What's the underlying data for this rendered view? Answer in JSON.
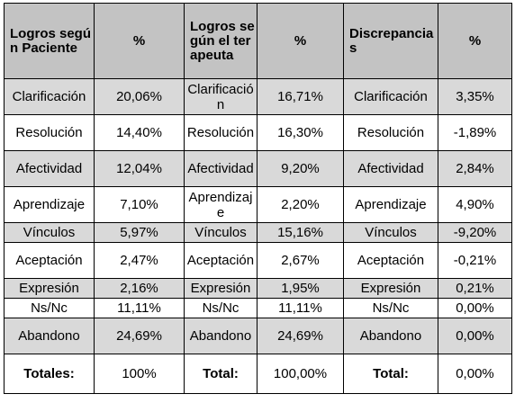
{
  "table": {
    "headers": [
      "Logros según Paciente",
      "%",
      "Logros según el terapeuta",
      "%",
      "Discrepancias",
      "%"
    ],
    "rows": [
      [
        "Clarificación",
        "20,06%",
        "Clarificación",
        "16,71%",
        "Clarificación",
        "3,35%"
      ],
      [
        "Resolución",
        "14,40%",
        "Resolución",
        "16,30%",
        "Resolución",
        "-1,89%"
      ],
      [
        "Afectividad",
        "12,04%",
        "Afectividad",
        "9,20%",
        "Afectividad",
        "2,84%"
      ],
      [
        "Aprendizaje",
        "7,10%",
        "Aprendizaje",
        "2,20%",
        "Aprendizaje",
        "4,90%"
      ],
      [
        "Vínculos",
        "5,97%",
        "Vínculos",
        "15,16%",
        "Vínculos",
        "-9,20%"
      ],
      [
        "Aceptación",
        "2,47%",
        "Aceptación",
        "2,67%",
        "Aceptación",
        "-0,21%"
      ],
      [
        "Expresión",
        "2,16%",
        "Expresión",
        "1,95%",
        "Expresión",
        "0,21%"
      ],
      [
        "Ns/Nc",
        "11,11%",
        "Ns/Nc",
        "11,11%",
        "Ns/Nc",
        "0,00%"
      ],
      [
        "Abandono",
        "24,69%",
        "Abandono",
        "24,69%",
        "Abandono",
        "0,00%"
      ]
    ],
    "totals": [
      "Totales:",
      "100%",
      "Total:",
      "100,00%",
      "Total:",
      "0,00%"
    ]
  },
  "colors": {
    "header_bg": "#c3c3c3",
    "shaded_row_bg": "#d9d9d9",
    "border": "#000000"
  }
}
